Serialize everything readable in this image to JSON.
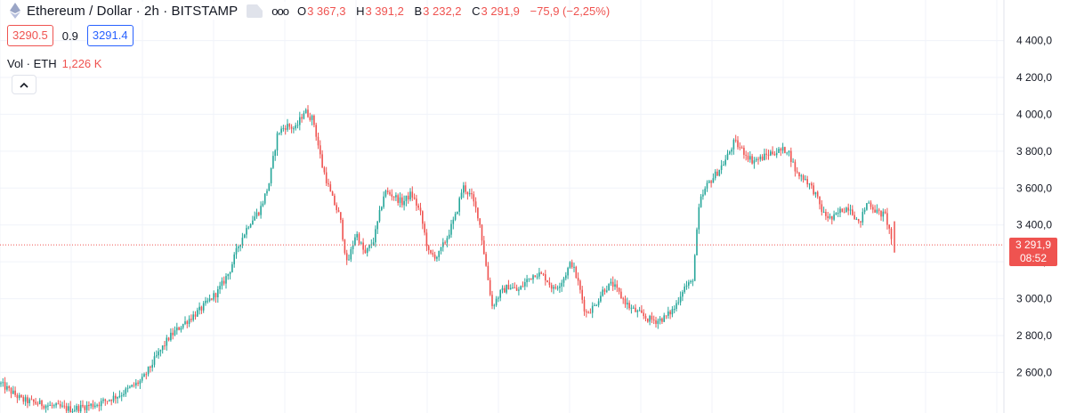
{
  "header": {
    "symbol_title": "Ethereum / Dollar · 2h · BITSTAMP",
    "more_label": "ooo",
    "ohlc": {
      "o_key": "O",
      "o_val": "3 367,3",
      "h_key": "H",
      "h_val": "3 391,2",
      "l_key": "B",
      "l_val": "3 232,2",
      "c_key": "C",
      "c_val": "3 291,9",
      "change": "−75,9 (−2,25%)"
    },
    "sell_price": "3290.5",
    "spread": "0.9",
    "buy_price": "3291.4",
    "volume_label": "Vol · ETH",
    "volume_value": "1,226 K"
  },
  "last_price": {
    "value": "3 291,9",
    "countdown": "08:52"
  },
  "colors": {
    "up": "#26a69a",
    "down": "#ef5350",
    "grid": "#f0f3fa",
    "axis_text": "#131722"
  },
  "chart_data": {
    "type": "candlestick",
    "title": "Ethereum / Dollar · 2h · BITSTAMP",
    "last_value": 3291.9,
    "ylim": [
      2380,
      4620
    ],
    "yticks": [
      2600,
      2800,
      3000,
      3200,
      3400,
      3600,
      3800,
      4000,
      4200,
      4400
    ],
    "ytick_labels": [
      "2 600,0",
      "2 800,0",
      "3 000,0",
      "3 200,0",
      "3 400,0",
      "3 600,0",
      "3 800,0",
      "4 000,0",
      "4 200,0",
      "4 400,0"
    ],
    "price_path": [
      [
        0,
        2540
      ],
      [
        25,
        2450
      ],
      [
        55,
        2420
      ],
      [
        80,
        2400
      ],
      [
        110,
        2430
      ],
      [
        135,
        2480
      ],
      [
        160,
        2560
      ],
      [
        175,
        2680
      ],
      [
        190,
        2790
      ],
      [
        205,
        2860
      ],
      [
        225,
        2940
      ],
      [
        245,
        3040
      ],
      [
        258,
        3150
      ],
      [
        268,
        3290
      ],
      [
        280,
        3410
      ],
      [
        292,
        3480
      ],
      [
        302,
        3620
      ],
      [
        312,
        3900
      ],
      [
        322,
        3940
      ],
      [
        332,
        3920
      ],
      [
        342,
        4020
      ],
      [
        352,
        3970
      ],
      [
        362,
        3720
      ],
      [
        372,
        3560
      ],
      [
        382,
        3440
      ],
      [
        390,
        3180
      ],
      [
        400,
        3360
      ],
      [
        410,
        3240
      ],
      [
        420,
        3320
      ],
      [
        432,
        3580
      ],
      [
        442,
        3560
      ],
      [
        452,
        3520
      ],
      [
        462,
        3570
      ],
      [
        472,
        3470
      ],
      [
        482,
        3240
      ],
      [
        492,
        3230
      ],
      [
        502,
        3330
      ],
      [
        512,
        3450
      ],
      [
        520,
        3610
      ],
      [
        530,
        3550
      ],
      [
        538,
        3440
      ],
      [
        546,
        3180
      ],
      [
        553,
        2960
      ],
      [
        562,
        3030
      ],
      [
        572,
        3070
      ],
      [
        582,
        3040
      ],
      [
        592,
        3100
      ],
      [
        602,
        3140
      ],
      [
        612,
        3120
      ],
      [
        622,
        3050
      ],
      [
        632,
        3100
      ],
      [
        642,
        3200
      ],
      [
        650,
        3080
      ],
      [
        658,
        2920
      ],
      [
        668,
        2960
      ],
      [
        678,
        3050
      ],
      [
        688,
        3080
      ],
      [
        698,
        3010
      ],
      [
        708,
        2950
      ],
      [
        718,
        2920
      ],
      [
        728,
        2890
      ],
      [
        738,
        2880
      ],
      [
        748,
        2900
      ],
      [
        758,
        2950
      ],
      [
        768,
        3060
      ],
      [
        778,
        3090
      ],
      [
        786,
        3520
      ],
      [
        795,
        3620
      ],
      [
        805,
        3680
      ],
      [
        815,
        3750
      ],
      [
        825,
        3850
      ],
      [
        835,
        3800
      ],
      [
        845,
        3750
      ],
      [
        855,
        3760
      ],
      [
        865,
        3790
      ],
      [
        875,
        3800
      ],
      [
        885,
        3810
      ],
      [
        895,
        3680
      ],
      [
        905,
        3650
      ],
      [
        915,
        3580
      ],
      [
        925,
        3460
      ],
      [
        935,
        3430
      ],
      [
        945,
        3480
      ],
      [
        955,
        3500
      ],
      [
        965,
        3400
      ],
      [
        975,
        3530
      ],
      [
        985,
        3470
      ],
      [
        995,
        3450
      ],
      [
        1003,
        3300
      ]
    ]
  }
}
